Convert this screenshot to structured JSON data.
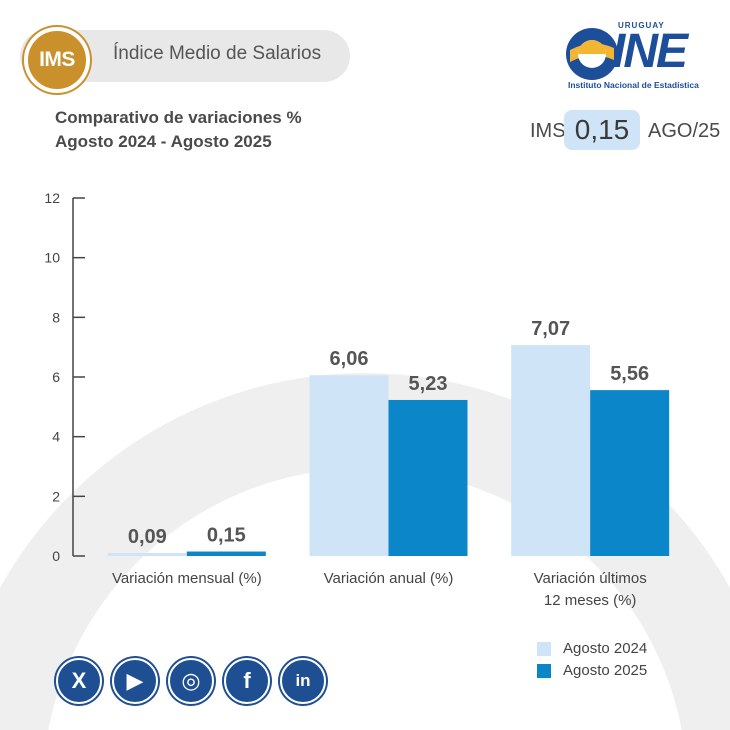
{
  "header": {
    "badge": "IMS",
    "title": "Índice Medio de Salarios",
    "subtitle_line1": "Comparativo de variaciones %",
    "subtitle_line2": "Agosto 2024 - Agosto 2025"
  },
  "logo": {
    "country": "URUGUAY",
    "name": "INE",
    "subtitle": "Instituto Nacional de Estadística"
  },
  "indicator": {
    "label": "IMS",
    "value": "0,15",
    "period": "AGO/25"
  },
  "chart_data": {
    "type": "bar",
    "categories": [
      "Variación mensual (%)",
      "Variación anual (%)",
      "Variación últimos 12 meses (%)"
    ],
    "category_lines": [
      [
        "Variación mensual (%)"
      ],
      [
        "Variación anual (%)"
      ],
      [
        "Variación últimos",
        "12 meses (%)"
      ]
    ],
    "series": [
      {
        "name": "Agosto 2024",
        "values": [
          0.09,
          6.06,
          7.07
        ],
        "labels": [
          "0,09",
          "6,06",
          "7,07"
        ],
        "color": "#cfe5f7"
      },
      {
        "name": "Agosto 2025",
        "values": [
          0.15,
          5.23,
          5.56
        ],
        "labels": [
          "0,15",
          "5,23",
          "5,56"
        ],
        "color": "#0a86c9"
      }
    ],
    "ylim": [
      0,
      12
    ],
    "yticks": [
      0,
      2,
      4,
      6,
      8,
      10,
      12
    ],
    "ytick_labels": [
      "0",
      "2",
      "4",
      "6",
      "8",
      "10",
      "12"
    ],
    "grid": false,
    "legend": "bottom-right"
  },
  "social": [
    {
      "icon": "x-icon",
      "glyph": "X"
    },
    {
      "icon": "youtube-icon",
      "glyph": "▶"
    },
    {
      "icon": "instagram-icon",
      "glyph": "◎"
    },
    {
      "icon": "facebook-icon",
      "glyph": "f"
    },
    {
      "icon": "linkedin-icon",
      "glyph": "in"
    }
  ],
  "colors": {
    "badge": "#c9902b",
    "brand_blue": "#1e4f93",
    "highlight_box": "#cfe5f7",
    "background_arc": "#efefef"
  }
}
